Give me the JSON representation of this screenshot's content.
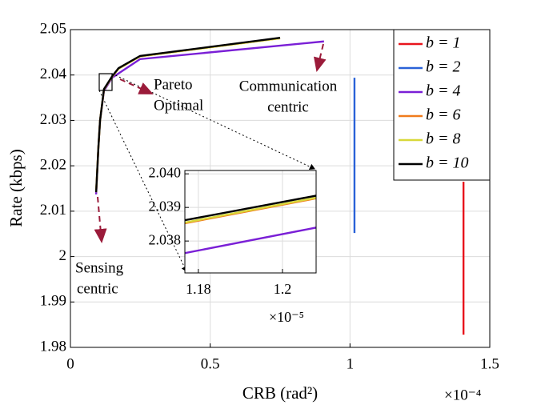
{
  "chart_data": [
    {
      "type": "line",
      "x_label": "CRB (rad²)",
      "y_label": "Rate (kbps)",
      "x_multiplier": "×10⁻⁴",
      "xlim": [
        0,
        1.5
      ],
      "xticks": [
        0,
        0.5,
        1,
        1.5
      ],
      "ylim": [
        1.98,
        2.05
      ],
      "yticks": [
        1.98,
        1.99,
        2,
        2.01,
        2.02,
        2.03,
        2.04,
        2.05
      ],
      "grid": true,
      "legend": "upper right",
      "series": [
        {
          "name": "b = 1",
          "color": "#e8141c",
          "x": [
            1.406,
            1.406
          ],
          "values": [
            2.0165,
            1.9828
          ]
        },
        {
          "name": "b = 2",
          "color": "#2a62d8",
          "x": [
            1.016,
            1.016
          ],
          "values": [
            2.0394,
            2.0052
          ]
        },
        {
          "name": "b = 4",
          "color": "#7a1fd6",
          "x": [
            0.092,
            0.1,
            0.106,
            0.12,
            0.149,
            0.249,
            0.907
          ],
          "values": [
            2.0137,
            2.024,
            2.03,
            2.0365,
            2.0394,
            2.0435,
            2.0474
          ]
        },
        {
          "name": "b = 6",
          "color": "#f07b1c",
          "x": [
            0.092,
            0.1,
            0.106,
            0.12,
            0.149,
            0.172,
            0.249,
            0.75
          ],
          "values": [
            2.0142,
            2.024,
            2.03,
            2.0368,
            2.0396,
            2.0414,
            2.0441,
            2.0481
          ]
        },
        {
          "name": "b = 8",
          "color": "#d8d83a",
          "x": [
            0.092,
            0.1,
            0.106,
            0.12,
            0.149,
            0.172,
            0.249,
            0.75
          ],
          "values": [
            2.0142,
            2.024,
            2.03,
            2.0368,
            2.0396,
            2.0414,
            2.0441,
            2.0481
          ]
        },
        {
          "name": "b = 10",
          "color": "#000000",
          "x": [
            0.092,
            0.1,
            0.106,
            0.12,
            0.149,
            0.172,
            0.249,
            0.75
          ],
          "values": [
            2.0142,
            2.024,
            2.03,
            2.0369,
            2.0397,
            2.0415,
            2.0442,
            2.0482
          ]
        }
      ],
      "annotations": [
        "Pareto",
        "Optimal",
        "Communication",
        "centric",
        "Sensing",
        "centric"
      ]
    },
    {
      "type": "line",
      "x_multiplier": "×10⁻⁵",
      "xlim": [
        1.1768,
        1.208
      ],
      "xticks": [
        1.18,
        1.2
      ],
      "ylim": [
        2.03705,
        2.0401
      ],
      "yticks": [
        {
          "value": 2.038,
          "label": "2.038"
        },
        {
          "value": 2.039,
          "label": "2.039"
        },
        {
          "value": 2.04,
          "label": "2.040"
        }
      ],
      "grid": true,
      "series": [
        {
          "name": "b = 4",
          "color": "#7a1fd6",
          "x": [
            1.1768,
            1.208
          ],
          "values": [
            2.03764,
            2.0384
          ]
        },
        {
          "name": "b = 6",
          "color": "#f07b1c",
          "x": [
            1.1768,
            1.208
          ],
          "values": [
            2.03853,
            2.03927
          ]
        },
        {
          "name": "b = 8",
          "color": "#d8d83a",
          "x": [
            1.1768,
            1.208
          ],
          "values": [
            2.03855,
            2.03929
          ]
        },
        {
          "name": "b = 10",
          "color": "#000000",
          "x": [
            1.1768,
            1.208
          ],
          "values": [
            2.03862,
            2.03935
          ]
        }
      ]
    }
  ]
}
